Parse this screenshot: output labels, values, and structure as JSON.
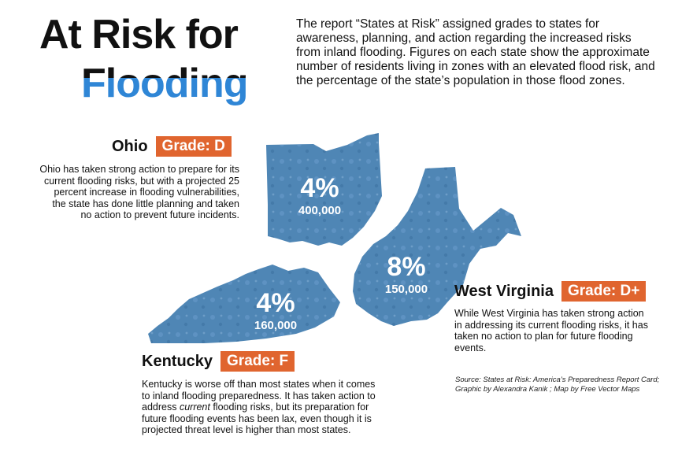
{
  "title": {
    "line1": "At Risk for",
    "line2": "Flooding"
  },
  "intro": "The report “States at Risk” assigned grades to states for awareness, planning, and action regarding the increased risks from inland flooding. Figures on each state show the approximate number of residents living in zones with an elevated flood risk, and the percentage of the state’s population in those flood zones.",
  "states": {
    "ohio": {
      "name": "Ohio",
      "grade": "Grade: D",
      "percent": "4%",
      "residents": "400,000",
      "description": "Ohio has taken strong action to prepare for its current flooding risks, but with a projected 25 percent increase in flooding vulnerabilities, the state has done little planning and taken no action to prevent future incidents."
    },
    "kentucky": {
      "name": "Kentucky",
      "grade": "Grade: F",
      "percent": "4%",
      "residents": "160,000",
      "description_before": "Kentucky is worse off than most states when it comes to inland flooding preparedness. It has taken action to address ",
      "description_emphasis": "current",
      "description_after": " flooding risks, but its preparation for future flooding events has been lax, even though it is projected threat level is higher than most states."
    },
    "west_virginia": {
      "name": "West Virginia",
      "grade": "Grade: D+",
      "percent": "8%",
      "residents": "150,000",
      "description": "While West Virginia has taken strong action in addressing its current flooding risks, it has taken no action to plan for future flooding events."
    }
  },
  "source": "Source: States at Risk: America’s Preparedness Report Card; Graphic by Alexandra Kanik ; Map by Free Vector Maps",
  "colors": {
    "state_fill": "#4f86b5",
    "state_fill_dark": "#3f74a3",
    "grade_badge": "#e0652f",
    "title_blue": "#2f86d6"
  }
}
